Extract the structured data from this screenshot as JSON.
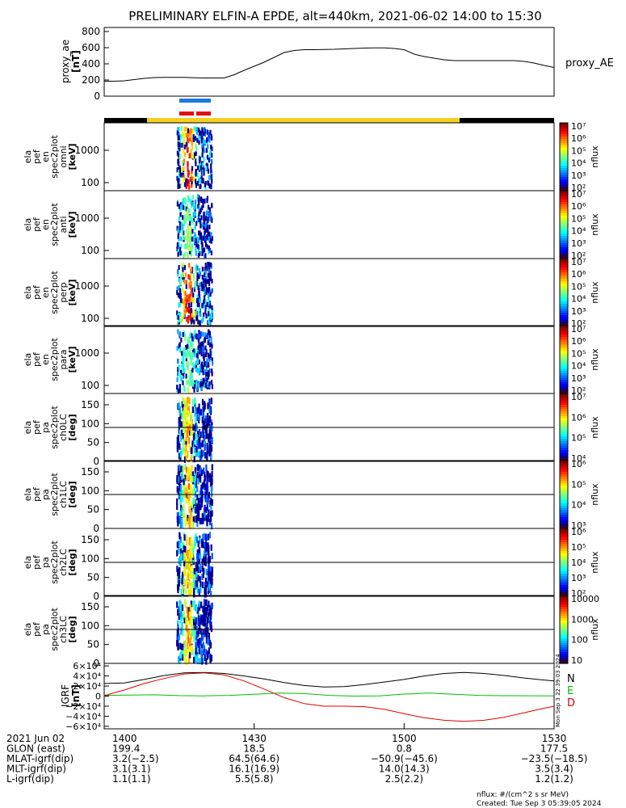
{
  "title": "PRELIMINARY ELFIN-A EPDE, alt=440km, 2021-06-02 14:00 to 15:30",
  "chart_data": [
    {
      "type": "line",
      "panel": "proxy_ae",
      "ylabel": "proxy_ae [nT]",
      "ylabel_lines": [
        "proxy_ae",
        "[nT]"
      ],
      "yticks": [
        "800",
        "600",
        "400",
        "200",
        "0"
      ],
      "ylim": [
        0,
        850
      ],
      "legend": "proxy_AE",
      "series": [
        {
          "name": "proxy_AE",
          "x": [
            0,
            2,
            4,
            6,
            8,
            10,
            12,
            14,
            16,
            18,
            20,
            22,
            24,
            26,
            28,
            30,
            32,
            34,
            36,
            38,
            40,
            42,
            44,
            46,
            48,
            50,
            52,
            54,
            56,
            58,
            60,
            62,
            64,
            66,
            68,
            70,
            72,
            74,
            76,
            78,
            80,
            82,
            84,
            86,
            88,
            90
          ],
          "y": [
            185,
            185,
            190,
            205,
            220,
            230,
            232,
            232,
            232,
            228,
            225,
            225,
            225,
            265,
            320,
            370,
            420,
            480,
            540,
            565,
            575,
            575,
            578,
            580,
            585,
            590,
            595,
            598,
            598,
            590,
            575,
            520,
            490,
            470,
            450,
            440,
            440,
            440,
            440,
            440,
            440,
            440,
            430,
            410,
            380,
            355
          ]
        }
      ]
    },
    {
      "type": "heatmap",
      "panel": "spec2plot_omni",
      "ylabel_lines": [
        "ela",
        "pef",
        "en",
        "spec2plot",
        "omni",
        "[keV]"
      ],
      "yticks": [
        "1000",
        "100"
      ],
      "colorbar_label": "nflux",
      "colorbar_ticks": [
        "10⁷",
        "10⁶",
        "10⁵",
        "10⁴",
        "10³",
        "10²"
      ]
    },
    {
      "type": "heatmap",
      "panel": "spec2plot_anti",
      "ylabel_lines": [
        "ela",
        "pef",
        "en",
        "spec2plot",
        "anti",
        "[keV]"
      ],
      "yticks": [
        "1000",
        "100"
      ],
      "colorbar_label": "nflux",
      "colorbar_ticks": [
        "10⁷",
        "10⁶",
        "10⁵",
        "10⁴",
        "10³",
        "10²"
      ]
    },
    {
      "type": "heatmap",
      "panel": "spec2plot_perp",
      "ylabel_lines": [
        "ela",
        "pef",
        "en",
        "spec2plot",
        "perp",
        "[keV]"
      ],
      "yticks": [
        "1000",
        "100"
      ],
      "colorbar_label": "nflux",
      "colorbar_ticks": [
        "10⁷",
        "10⁶",
        "10⁵",
        "10⁴",
        "10³",
        "10²"
      ]
    },
    {
      "type": "heatmap",
      "panel": "spec2plot_para",
      "ylabel_lines": [
        "ela",
        "pef",
        "en",
        "spec2plot",
        "para",
        "[keV]"
      ],
      "yticks": [
        "1000",
        "100"
      ],
      "colorbar_label": "nflux",
      "colorbar_ticks": [
        "10⁷",
        "10⁶",
        "10⁵",
        "10⁴",
        "10³",
        "10²"
      ]
    },
    {
      "type": "heatmap",
      "panel": "spec2plot_ch0LC",
      "ylabel_lines": [
        "ela",
        "pef",
        "pa",
        "spec2plot",
        "ch0LC",
        "[deg]"
      ],
      "yticks": [
        "150",
        "100",
        "50",
        "0"
      ],
      "ylim": [
        0,
        180
      ],
      "colorbar_label": "nflux",
      "colorbar_ticks": [
        "10⁷",
        "10⁶",
        "10⁵",
        "10⁴"
      ]
    },
    {
      "type": "heatmap",
      "panel": "spec2plot_ch1LC",
      "ylabel_lines": [
        "ela",
        "pef",
        "pa",
        "spec2plot",
        "ch1LC",
        "[deg]"
      ],
      "yticks": [
        "150",
        "100",
        "50",
        "0"
      ],
      "ylim": [
        0,
        180
      ],
      "colorbar_label": "nflux",
      "colorbar_ticks": [
        "10⁶",
        "10⁵",
        "10⁴",
        "10³"
      ]
    },
    {
      "type": "heatmap",
      "panel": "spec2plot_ch2LC",
      "ylabel_lines": [
        "ela",
        "pef",
        "pa",
        "spec2plot",
        "ch2LC",
        "[deg]"
      ],
      "yticks": [
        "150",
        "100",
        "50",
        "0"
      ],
      "ylim": [
        0,
        180
      ],
      "colorbar_label": "nflux",
      "colorbar_ticks": [
        "10⁶",
        "10⁵",
        "10⁴",
        "10³",
        "10²"
      ]
    },
    {
      "type": "heatmap",
      "panel": "spec2plot_ch3LC",
      "ylabel_lines": [
        "ela",
        "pef",
        "pa",
        "spec2plot",
        "ch3LC",
        "[deg]"
      ],
      "yticks": [
        "150",
        "100",
        "50",
        "0"
      ],
      "ylim": [
        0,
        180
      ],
      "colorbar_label": "nflux",
      "colorbar_ticks": [
        "10000",
        "1000",
        "100",
        "10"
      ]
    },
    {
      "type": "line",
      "panel": "IGRF",
      "ylabel_lines": [
        "IGRF",
        "[nT]"
      ],
      "yticks": [
        "6×10⁴",
        "4×10⁴",
        "2×10⁴",
        "0",
        "−2×10⁴",
        "−4×10⁴",
        "−6×10⁴"
      ],
      "ylim": [
        -65000,
        65000
      ],
      "series": [
        {
          "name": "N",
          "color": "#000000",
          "x": [
            0,
            4,
            8,
            12,
            16,
            20,
            24,
            28,
            32,
            36,
            40,
            44,
            48,
            52,
            56,
            60,
            64,
            68,
            72,
            76,
            80,
            84,
            88,
            90
          ],
          "y": [
            25000,
            26000,
            33000,
            41000,
            46000,
            47000,
            45000,
            40000,
            34000,
            27000,
            21000,
            18000,
            19000,
            23000,
            28000,
            33000,
            40000,
            45000,
            47000,
            45000,
            41000,
            36000,
            32000,
            30000
          ]
        },
        {
          "name": "E",
          "color": "#00c000",
          "x": [
            0,
            5,
            10,
            15,
            20,
            25,
            30,
            35,
            40,
            45,
            50,
            55,
            60,
            65,
            70,
            75,
            80,
            85,
            90
          ],
          "y": [
            1500,
            2000,
            2500,
            1000,
            500,
            1500,
            3500,
            6000,
            5000,
            1500,
            0,
            500,
            4000,
            6000,
            3500,
            1500,
            800,
            600,
            500
          ]
        },
        {
          "name": "D",
          "color": "#e00000",
          "x": [
            0,
            4,
            8,
            12,
            16,
            20,
            24,
            28,
            32,
            36,
            40,
            44,
            48,
            52,
            56,
            60,
            64,
            68,
            72,
            76,
            80,
            84,
            88,
            90
          ],
          "y": [
            1000,
            12000,
            25000,
            35000,
            44000,
            46000,
            42000,
            30000,
            14000,
            -3000,
            -15000,
            -20000,
            -20000,
            -21000,
            -26000,
            -35000,
            -43000,
            -48000,
            -50000,
            -48000,
            -42000,
            -33000,
            -24000,
            -20000
          ]
        }
      ]
    }
  ],
  "igrf_legend": [
    "N",
    "E",
    "D"
  ],
  "igrf_side_label": "Mon Sep 3 22:39:03 2024",
  "bottom_axis": {
    "rows": [
      {
        "label": "2021 Jun 02",
        "values": [
          "1400",
          "1430",
          "1500",
          "1530"
        ]
      },
      {
        "label": "GLON (east)",
        "values": [
          "199.4",
          "18.5",
          "0.8",
          "177.5"
        ]
      },
      {
        "label": "MLAT-igrf(dip)",
        "values": [
          "3.2(−2.5)",
          "64.5(64.6)",
          "−50.9(−45.6)",
          "−23.5(−18.5)"
        ]
      },
      {
        "label": "MLT-igrf(dip)",
        "values": [
          "3.1(3.1)",
          "16.1(16.9)",
          "14.0(14.3)",
          "3.5(3.4)"
        ]
      },
      {
        "label": "L-igrf(dip)",
        "values": [
          "1.1(1.1)",
          "5.5(5.8)",
          "2.5(2.2)",
          "1.2(1.2)"
        ]
      }
    ]
  },
  "footer": {
    "units": "nflux: #/(cm^2 s sr MeV)",
    "created": "Created: Tue Sep  3 05:39:05 2024"
  },
  "colors": {
    "science_zone_blue": "#1a7ae0",
    "science_zone_red": "#e01010",
    "orbit_bar_yellow": "#f5d020",
    "orbit_bar_black": "#000000"
  }
}
